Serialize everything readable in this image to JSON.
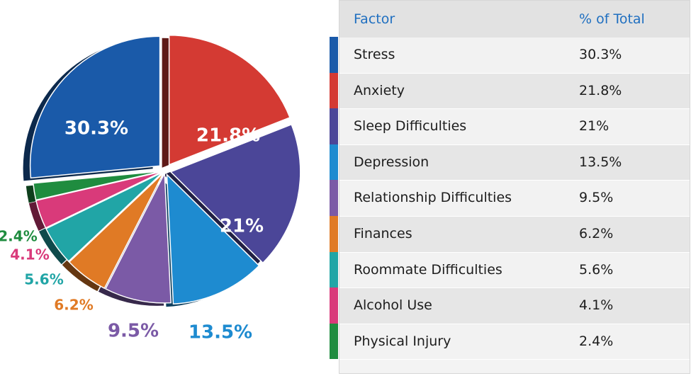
{
  "table": {
    "header_factor": "Factor",
    "header_pct": "% of Total"
  },
  "chart_data": {
    "type": "pie",
    "slices": [
      {
        "label": "Stress",
        "value": 30.3,
        "display": "30.3%",
        "table_value": "30.3%",
        "color": "#1a5aa9",
        "label_color": "#ffffff"
      },
      {
        "label": "Anxiety",
        "value": 21.8,
        "display": "21.8%",
        "table_value": "21.8%",
        "color": "#d43a33",
        "label_color": "#ffffff"
      },
      {
        "label": "Sleep Difficulties",
        "value": 21,
        "display": "21%",
        "table_value": "21%",
        "color": "#4b4698",
        "label_color": "#ffffff"
      },
      {
        "label": "Depression",
        "value": 13.5,
        "display": "13.5%",
        "table_value": "13.5%",
        "color": "#1e8bd0",
        "label_color": "#1e8bd0"
      },
      {
        "label": "Relationship Difficulties",
        "value": 9.5,
        "display": "9.5%",
        "table_value": "9.5%",
        "color": "#7b5aa6",
        "label_color": "#7b5aa6"
      },
      {
        "label": "Finances",
        "value": 6.2,
        "display": "6.2%",
        "table_value": "6.2%",
        "color": "#e07a25",
        "label_color": "#e07a25"
      },
      {
        "label": "Roommate Difficulties",
        "value": 5.6,
        "display": "5.6%",
        "table_value": "5.6%",
        "color": "#21a5a6",
        "label_color": "#21a5a6"
      },
      {
        "label": "Alcohol Use",
        "value": 4.1,
        "display": "4.1%",
        "table_value": "4.1%",
        "color": "#d93a7a",
        "label_color": "#d93a7a"
      },
      {
        "label": "Physical Injury",
        "value": 2.4,
        "display": "2.4%",
        "table_value": "2.4%",
        "color": "#1f8c3f",
        "label_color": "#1f8c3f"
      }
    ]
  }
}
